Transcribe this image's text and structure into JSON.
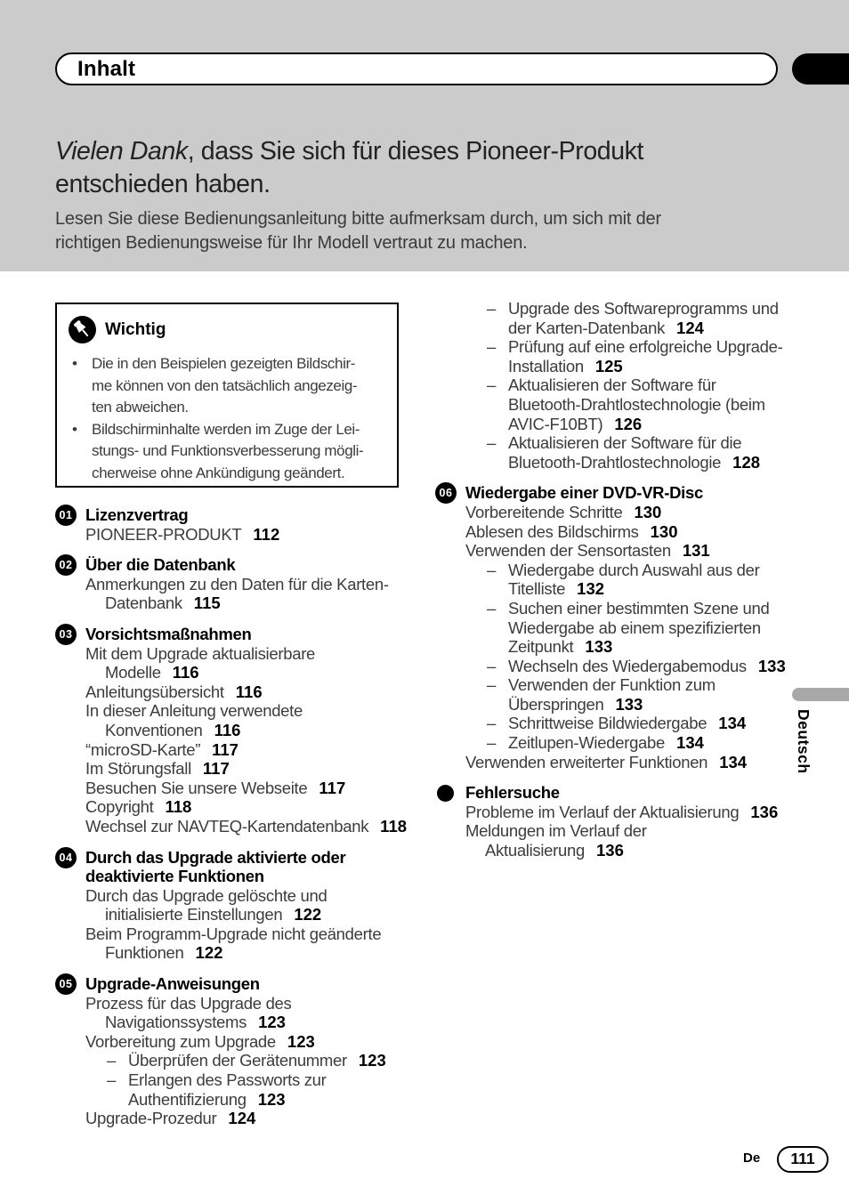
{
  "colors": {
    "header_band": "#cbcbcb",
    "side_pill": "#a8a8a8",
    "body_text": "#3c3c3c",
    "ink": "#000000"
  },
  "header": {
    "tab_label": "Inhalt"
  },
  "hero": {
    "italic": "Vielen Dank",
    "line1_rest": ", dass Sie sich für dieses Pioneer-Produkt",
    "line2": "entschieden haben.",
    "intro_line1": "Lesen Sie diese Bedienungsanleitung bitte aufmerksam durch, um sich mit der",
    "intro_line2": "richtigen Bedienungsweise für Ihr Modell vertraut zu machen."
  },
  "notice": {
    "icon": "pushpin-icon",
    "title": "Wichtig",
    "bullet_char": "•",
    "bullets": [
      [
        "Die in den Beispielen gezeigten Bildschir-",
        "me können von den tatsächlich angezeig-",
        "ten abweichen."
      ],
      [
        "Bildschirminhalte werden im Zuge der Lei-",
        "stungs- und Funktionsverbesserung mögli-",
        "cherweise ohne Ankündigung geändert."
      ]
    ]
  },
  "toc": {
    "dash_char": "–",
    "left": [
      {
        "k": "ch",
        "n": "01",
        "t": "Lizenzvertrag"
      },
      {
        "k": "it",
        "t": "PIONEER-PRODUKT",
        "p": "112"
      },
      {
        "k": "ch",
        "n": "02",
        "t": "Über die Datenbank"
      },
      {
        "k": "it",
        "t": "Anmerkungen zu den Daten für die Karten-"
      },
      {
        "k": "co",
        "t": "Datenbank",
        "p": "115"
      },
      {
        "k": "ch",
        "n": "03",
        "t": "Vorsichtsmaßnahmen"
      },
      {
        "k": "it",
        "t": "Mit dem Upgrade aktualisierbare"
      },
      {
        "k": "co",
        "t": "Modelle",
        "p": "116"
      },
      {
        "k": "it",
        "t": "Anleitungsübersicht",
        "p": "116"
      },
      {
        "k": "it",
        "t": "In dieser Anleitung verwendete"
      },
      {
        "k": "co",
        "t": "Konventionen",
        "p": "116"
      },
      {
        "k": "it",
        "t": "“microSD-Karte”",
        "p": "117"
      },
      {
        "k": "it",
        "t": "Im Störungsfall",
        "p": "117"
      },
      {
        "k": "it",
        "t": "Besuchen Sie unsere Webseite",
        "p": "117"
      },
      {
        "k": "it",
        "t": "Copyright",
        "p": "118"
      },
      {
        "k": "it",
        "t": "Wechsel zur NAVTEQ-Kartendatenbank",
        "p": "118"
      },
      {
        "k": "ch",
        "n": "04",
        "t": [
          "Durch das Upgrade aktivierte oder",
          "deaktivierte Funktionen"
        ]
      },
      {
        "k": "it",
        "t": "Durch das Upgrade gelöschte und"
      },
      {
        "k": "co",
        "t": "initialisierte Einstellungen",
        "p": "122"
      },
      {
        "k": "it",
        "t": "Beim Programm-Upgrade nicht geänderte"
      },
      {
        "k": "co",
        "t": "Funktionen",
        "p": "122"
      },
      {
        "k": "ch",
        "n": "05",
        "t": "Upgrade-Anweisungen"
      },
      {
        "k": "it",
        "t": "Prozess für das Upgrade des"
      },
      {
        "k": "co",
        "t": "Navigationssystems",
        "p": "123"
      },
      {
        "k": "it",
        "t": "Vorbereitung zum Upgrade",
        "p": "123"
      },
      {
        "k": "da",
        "t": "Überprüfen der Gerätenummer",
        "p": "123"
      },
      {
        "k": "da",
        "t": "Erlangen des Passworts zur"
      },
      {
        "k": "dc",
        "t": "Authentifizierung",
        "p": "123"
      },
      {
        "k": "it",
        "t": "Upgrade-Prozedur",
        "p": "124"
      }
    ],
    "right": [
      {
        "k": "da",
        "t": "Upgrade des Softwareprogramms und"
      },
      {
        "k": "dc",
        "t": "der Karten-Datenbank",
        "p": "124"
      },
      {
        "k": "da",
        "t": "Prüfung auf eine erfolgreiche Upgrade-"
      },
      {
        "k": "dc",
        "t": "Installation",
        "p": "125"
      },
      {
        "k": "da",
        "t": "Aktualisieren der Software für"
      },
      {
        "k": "dc",
        "t": "Bluetooth-Drahtlostechnologie (beim"
      },
      {
        "k": "dc",
        "t": "AVIC-F10BT)",
        "p": "126"
      },
      {
        "k": "da",
        "t": "Aktualisieren der Software für die"
      },
      {
        "k": "dc",
        "t": "Bluetooth-Drahtlostechnologie",
        "p": "128"
      },
      {
        "k": "ch",
        "n": "06",
        "t": "Wiedergabe einer DVD-VR-Disc"
      },
      {
        "k": "it",
        "t": "Vorbereitende Schritte",
        "p": "130"
      },
      {
        "k": "it",
        "t": "Ablesen des Bildschirms",
        "p": "130"
      },
      {
        "k": "it",
        "t": "Verwenden der Sensortasten",
        "p": "131"
      },
      {
        "k": "da",
        "t": "Wiedergabe durch Auswahl aus der"
      },
      {
        "k": "dc",
        "t": "Titelliste",
        "p": "132"
      },
      {
        "k": "da",
        "t": "Suchen einer bestimmten Szene und"
      },
      {
        "k": "dc",
        "t": "Wiedergabe ab einem spezifizierten"
      },
      {
        "k": "dc",
        "t": "Zeitpunkt",
        "p": "133"
      },
      {
        "k": "da",
        "t": "Wechseln des Wiedergabemodus",
        "p": "133"
      },
      {
        "k": "da",
        "t": "Verwenden der Funktion zum"
      },
      {
        "k": "dc",
        "t": "Überspringen",
        "p": "133"
      },
      {
        "k": "da",
        "t": "Schrittweise Bildwiedergabe",
        "p": "134"
      },
      {
        "k": "da",
        "t": "Zeitlupen-Wiedergabe",
        "p": "134"
      },
      {
        "k": "it",
        "t": "Verwenden erweiterter Funktionen",
        "p": "134"
      },
      {
        "k": "ch",
        "n": "dot",
        "t": "Fehlersuche"
      },
      {
        "k": "it",
        "t": "Probleme im Verlauf der Aktualisierung",
        "p": "136"
      },
      {
        "k": "it",
        "t": "Meldungen im Verlauf der"
      },
      {
        "k": "co",
        "t": "Aktualisierung",
        "p": "136"
      }
    ]
  },
  "side": {
    "language_label": "Deutsch"
  },
  "footer": {
    "lang_abbrev": "De",
    "page_number": "111"
  }
}
